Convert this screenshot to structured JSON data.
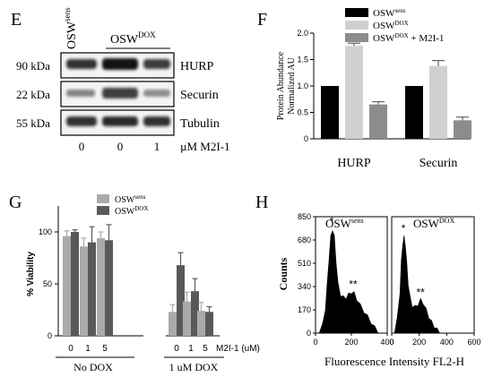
{
  "panels": {
    "E": {
      "letter": "E",
      "lane_labels": [
        "OSW",
        "OSW"
      ],
      "lane_label_sups": [
        "sens",
        "DOX"
      ],
      "rows": [
        {
          "kda": "90 kDa",
          "protein": "HURP"
        },
        {
          "kda": "22 kDa",
          "protein": "Securin"
        },
        {
          "kda": "55 kDa",
          "protein": "Tubulin"
        }
      ],
      "doses": [
        "0",
        "0",
        "1"
      ],
      "dose_unit": "µM M2I-1"
    },
    "F": {
      "letter": "F"
    },
    "G": {
      "letter": "G"
    },
    "H": {
      "letter": "H"
    }
  },
  "chart_data": [
    {
      "panel": "F",
      "type": "bar",
      "categories": [
        "HURP",
        "Securin"
      ],
      "ylabel_lines": [
        "Protein Abundance",
        "Normalized AU"
      ],
      "ylim": [
        0,
        2.0
      ],
      "yticks": [
        "0",
        "0.5",
        "1.0",
        "1.5",
        "2.0"
      ],
      "legend_position": "top-right",
      "series": [
        {
          "name": "OSW",
          "sup": "sens",
          "suffix": "",
          "color": "#000000",
          "values": [
            1.0,
            1.0
          ],
          "errors": [
            0,
            0
          ]
        },
        {
          "name": "OSW",
          "sup": "DOX",
          "suffix": "",
          "color": "#d0d0d0",
          "values": [
            1.76,
            1.38
          ],
          "errors": [
            0.05,
            0.1
          ]
        },
        {
          "name": "OSW",
          "sup": "DOX",
          "suffix": " + M2I-1",
          "color": "#8c8c8c",
          "values": [
            0.65,
            0.35
          ],
          "errors": [
            0.05,
            0.06
          ]
        }
      ]
    },
    {
      "panel": "G",
      "type": "bar",
      "ylabel": "% Viability",
      "ylim": [
        0,
        125
      ],
      "yticks": [
        "0",
        "50",
        "100"
      ],
      "groups": [
        {
          "label": "No DOX",
          "categories": [
            "0",
            "1",
            "5"
          ]
        },
        {
          "label": "1 uM DOX",
          "categories": [
            "0",
            "1",
            "5"
          ]
        }
      ],
      "x_unit_label": "M2I-1 (uM)",
      "legend_position": "top",
      "series": [
        {
          "name": "OSW",
          "sup": "sens",
          "color": "#aaaaaa",
          "values": [
            96,
            86,
            94,
            23,
            33,
            24
          ],
          "errors": [
            5,
            8,
            6,
            7,
            9,
            8
          ]
        },
        {
          "name": "OSW",
          "sup": "DOX",
          "color": "#595959",
          "values": [
            100,
            90,
            92,
            68,
            43,
            23
          ],
          "errors": [
            2,
            15,
            15,
            12,
            12,
            5
          ]
        }
      ]
    },
    {
      "panel": "H",
      "type": "area",
      "ylabel": "Counts",
      "xlabel": "Fluorescence Intensity FL2-H",
      "yticks": [
        "0",
        "170",
        "340",
        "510",
        "680",
        "850"
      ],
      "xticks": [
        "0",
        "200",
        "400",
        "600"
      ],
      "xticks_left": [
        "0",
        "200",
        "400"
      ],
      "xticks_right": [
        "0",
        "200",
        "400",
        "600"
      ],
      "ylim": [
        0,
        850
      ],
      "histograms": [
        {
          "title": "OSW",
          "title_sup": "sens",
          "xlim": [
            0,
            400
          ],
          "x": [
            20,
            40,
            55,
            65,
            75,
            85,
            95,
            105,
            115,
            125,
            140,
            155,
            170,
            185,
            200,
            215,
            230,
            250,
            270,
            290,
            310,
            330,
            350
          ],
          "y": [
            10,
            60,
            180,
            350,
            540,
            700,
            760,
            700,
            520,
            360,
            280,
            260,
            260,
            280,
            300,
            290,
            250,
            200,
            160,
            120,
            80,
            40,
            10
          ],
          "annotations": [
            {
              "text": "*",
              "x": 90,
              "y": 790
            },
            {
              "text": "**",
              "x": 210,
              "y": 330
            }
          ]
        },
        {
          "title": "OSW",
          "title_sup": "DOX",
          "xlim": [
            0,
            600
          ],
          "x": [
            20,
            40,
            60,
            70,
            80,
            90,
            100,
            110,
            120,
            135,
            150,
            170,
            190,
            210,
            230,
            250,
            270,
            290,
            310,
            330,
            350
          ],
          "y": [
            10,
            100,
            300,
            520,
            650,
            700,
            640,
            500,
            360,
            250,
            200,
            190,
            210,
            240,
            220,
            170,
            120,
            80,
            50,
            25,
            10
          ],
          "annotations": [
            {
              "text": "*",
              "x": 85,
              "y": 740
            },
            {
              "text": "**",
              "x": 210,
              "y": 270
            }
          ]
        }
      ]
    }
  ]
}
